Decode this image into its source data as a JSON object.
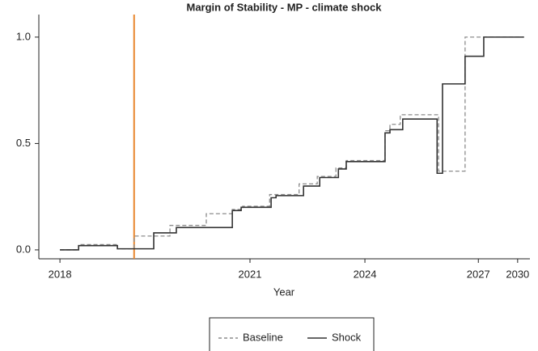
{
  "chart_data": {
    "type": "line",
    "title": "Margin of Stability - MP - climate shock",
    "xlabel": "Year",
    "xlim": [
      0,
      100
    ],
    "xticks": [
      {
        "value": 4.3,
        "label": "2018"
      },
      {
        "value": 43.0,
        "label": "2021"
      },
      {
        "value": 66.4,
        "label": "2024"
      },
      {
        "value": 89.5,
        "label": "2027"
      },
      {
        "value": 97.5,
        "label": "2030"
      }
    ],
    "ylim": [
      -0.042,
      1.106
    ],
    "yticks": [
      {
        "value": 0,
        "label": "0.0"
      },
      {
        "value": 0.5,
        "label": "0.5"
      },
      {
        "value": 1,
        "label": "1.0"
      }
    ],
    "vline": {
      "x": 19.4,
      "color": "#e8872f"
    },
    "legend": "bottom",
    "series": [
      {
        "name": "Baseline",
        "color": "#8c8c8c",
        "dash": true,
        "x": [
          4.3,
          8.1,
          8.1,
          16.0,
          16.0,
          19.4,
          19.4,
          26.7,
          26.7,
          34.1,
          34.1,
          39.4,
          39.4,
          41.5,
          41.5,
          47.0,
          47.0,
          53.0,
          53.0,
          56.7,
          56.7,
          60.5,
          60.5,
          62.6,
          62.6,
          70.5,
          70.5,
          71.5,
          71.5,
          73.6,
          73.6,
          81.4,
          81.4,
          86.8,
          86.8,
          98.8
        ],
        "values": [
          0,
          0,
          0.025,
          0.025,
          0.005,
          0.005,
          0.065,
          0.065,
          0.115,
          0.115,
          0.17,
          0.17,
          0.19,
          0.19,
          0.205,
          0.205,
          0.26,
          0.26,
          0.31,
          0.31,
          0.345,
          0.345,
          0.385,
          0.385,
          0.42,
          0.42,
          0.56,
          0.56,
          0.59,
          0.59,
          0.635,
          0.635,
          0.37,
          0.37,
          1.0,
          1.0
        ]
      },
      {
        "name": "Shock",
        "color": "#333333",
        "dash": false,
        "x": [
          4.3,
          8.1,
          8.1,
          16.0,
          16.0,
          23.4,
          23.4,
          28.0,
          28.0,
          39.4,
          39.4,
          41.2,
          41.2,
          47.3,
          47.3,
          48.3,
          48.3,
          53.9,
          53.9,
          57.2,
          57.2,
          61.0,
          61.0,
          62.6,
          62.6,
          70.5,
          70.5,
          71.5,
          71.5,
          74.1,
          74.1,
          81.1,
          81.1,
          82.2,
          82.2,
          86.8,
          86.8,
          90.6,
          90.6,
          98.8
        ],
        "values": [
          0,
          0,
          0.02,
          0.02,
          0.005,
          0.005,
          0.08,
          0.08,
          0.105,
          0.105,
          0.185,
          0.185,
          0.2,
          0.2,
          0.245,
          0.245,
          0.255,
          0.255,
          0.3,
          0.3,
          0.34,
          0.34,
          0.38,
          0.38,
          0.415,
          0.415,
          0.55,
          0.55,
          0.565,
          0.565,
          0.615,
          0.615,
          0.36,
          0.36,
          0.78,
          0.78,
          0.91,
          0.91,
          1.0,
          1.0
        ]
      }
    ]
  }
}
